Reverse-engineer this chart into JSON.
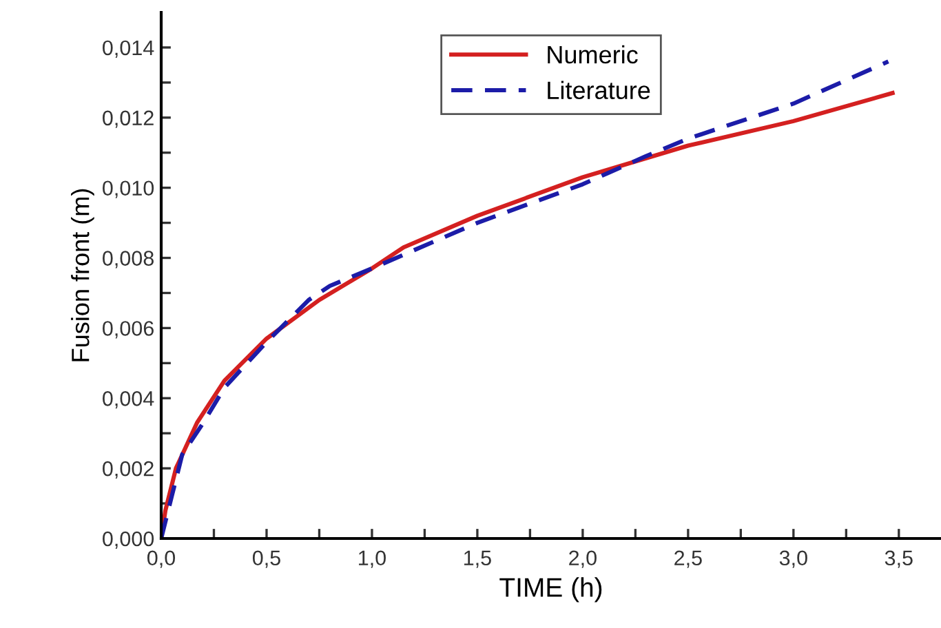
{
  "chart_data": {
    "type": "line",
    "xlabel": "TIME (h)",
    "ylabel": "Fusion front (m)",
    "xlim": [
      0,
      3.7
    ],
    "ylim": [
      0,
      0.015
    ],
    "xticks": [
      {
        "value": 0,
        "label": "0,0"
      },
      {
        "value": 0.25,
        "label": null
      },
      {
        "value": 0.5,
        "label": "0,5"
      },
      {
        "value": 0.75,
        "label": null
      },
      {
        "value": 1.0,
        "label": "1,0"
      },
      {
        "value": 1.25,
        "label": null
      },
      {
        "value": 1.5,
        "label": "1,5"
      },
      {
        "value": 1.75,
        "label": null
      },
      {
        "value": 2.0,
        "label": "2,0"
      },
      {
        "value": 2.25,
        "label": null
      },
      {
        "value": 2.5,
        "label": "2,5"
      },
      {
        "value": 2.75,
        "label": null
      },
      {
        "value": 3.0,
        "label": "3,0"
      },
      {
        "value": 3.25,
        "label": null
      },
      {
        "value": 3.5,
        "label": "3,5"
      }
    ],
    "yticks": [
      {
        "value": 0,
        "label": "0,000"
      },
      {
        "value": 0.001,
        "label": null
      },
      {
        "value": 0.002,
        "label": "0,002"
      },
      {
        "value": 0.003,
        "label": null
      },
      {
        "value": 0.004,
        "label": "0,004"
      },
      {
        "value": 0.005,
        "label": null
      },
      {
        "value": 0.006,
        "label": "0,006"
      },
      {
        "value": 0.007,
        "label": null
      },
      {
        "value": 0.008,
        "label": "0,008"
      },
      {
        "value": 0.009,
        "label": null
      },
      {
        "value": 0.01,
        "label": "0,010"
      },
      {
        "value": 0.011,
        "label": null
      },
      {
        "value": 0.012,
        "label": "0,012"
      },
      {
        "value": 0.013,
        "label": null
      },
      {
        "value": 0.014,
        "label": "0,014"
      }
    ],
    "grid": false,
    "legend": "top",
    "marker": "none",
    "series": [
      {
        "name": "Numeric",
        "color": "#d42020",
        "line_style": "solid",
        "x": [
          0,
          0.02,
          0.07,
          0.17,
          0.3,
          0.5,
          0.75,
          1.0,
          1.15,
          1.5,
          2.0,
          2.5,
          3.0,
          3.47
        ],
        "values": [
          0,
          0.0008,
          0.002,
          0.0033,
          0.0045,
          0.0057,
          0.0068,
          0.0077,
          0.0083,
          0.0092,
          0.0103,
          0.0112,
          0.0119,
          0.0127
        ]
      },
      {
        "name": "Literature",
        "color": "#1c1ca8",
        "line_style": "dashed",
        "x": [
          0,
          0.05,
          0.1,
          0.2,
          0.3,
          0.5,
          0.7,
          0.8,
          1.0,
          1.5,
          2.0,
          2.3,
          2.5,
          3.0,
          3.45
        ],
        "values": [
          0,
          0.0012,
          0.0024,
          0.0033,
          0.0043,
          0.0056,
          0.0068,
          0.0072,
          0.0077,
          0.009,
          0.0101,
          0.0109,
          0.0114,
          0.0124,
          0.0136
        ]
      }
    ]
  }
}
